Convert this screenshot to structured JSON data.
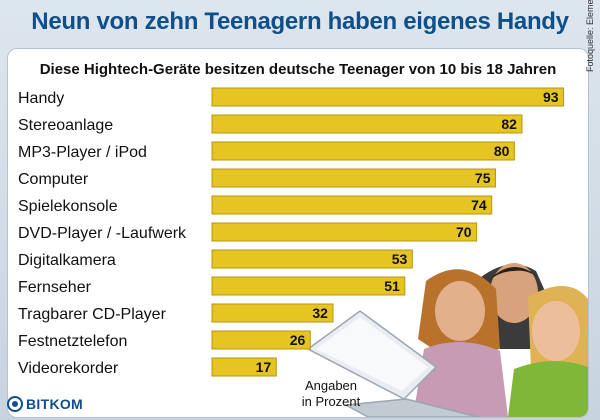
{
  "headline": "Neun von zehn Teenagern haben eigenes Handy",
  "photo_credit": "Fotoquelle: Elements of Art",
  "unit_note_line1": "Angaben",
  "unit_note_line2": "in Prozent",
  "logo_text": "BITKOM",
  "colors": {
    "bar": "#e6c422",
    "bar_border": "#b89610",
    "headline": "#0f4f8a"
  },
  "chart_data": {
    "type": "bar",
    "orientation": "horizontal",
    "title": "Diese Hightech-Geräte besitzen deutsche Teenager von 10 bis 18 Jahren",
    "xlabel": "",
    "ylabel": "",
    "unit": "Prozent",
    "xlim": [
      0,
      100
    ],
    "grid": false,
    "categories": [
      "Handy",
      "Stereoanlage",
      "MP3-Player / iPod",
      "Computer",
      "Spielekonsole",
      "DVD-Player / -Laufwerk",
      "Digitalkamera",
      "Fernseher",
      "Tragbarer CD-Player",
      "Festnetztelefon",
      "Videorekorder"
    ],
    "values": [
      93,
      82,
      80,
      75,
      74,
      70,
      53,
      51,
      32,
      26,
      17
    ]
  }
}
